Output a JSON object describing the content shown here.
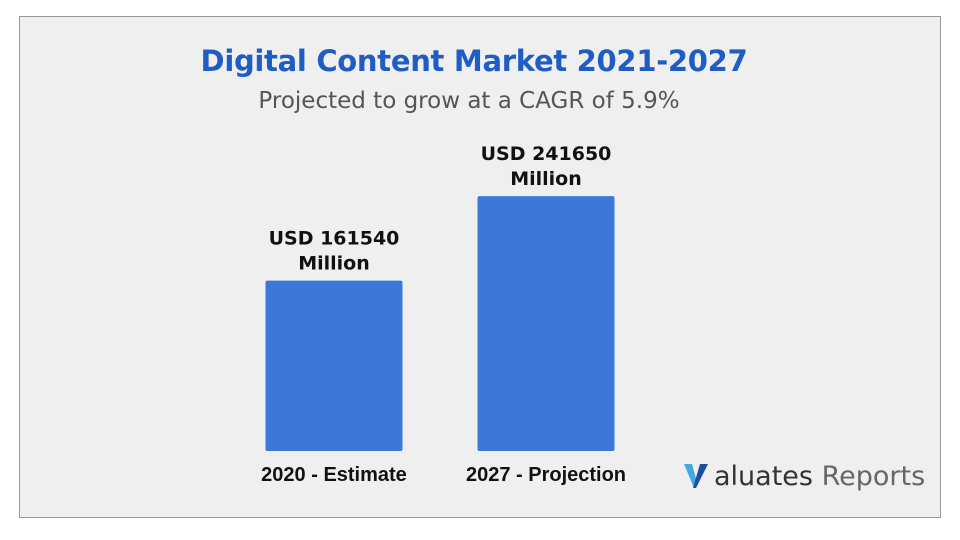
{
  "chart_data": {
    "type": "bar",
    "title": "Digital Content Market 2021-2027",
    "subtitle": "Projected to grow at a CAGR of 5.9%",
    "categories": [
      "2020 - Estimate",
      "2027 - Projection"
    ],
    "values": [
      161540,
      241650
    ],
    "data_labels": [
      [
        "USD 161540",
        "Million"
      ],
      [
        "USD 241650",
        "Million"
      ]
    ],
    "unit": "USD Million",
    "ylim": [
      0,
      256000
    ],
    "grid": false,
    "bar_color": "#3c78d8"
  },
  "branding": {
    "logo_name": "aluates",
    "logo_suffix": "Reports",
    "logo_icon": "valuates-v-icon",
    "logo_colors": [
      "#1f4e9c",
      "#3fa9e0"
    ]
  },
  "colors": {
    "title": "#1f5cc4",
    "background": "#efefef"
  }
}
